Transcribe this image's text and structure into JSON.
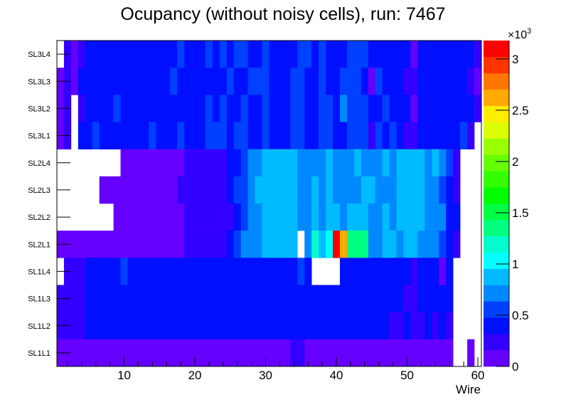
{
  "chart_data": {
    "type": "heatmap",
    "title": "Ocupancy (without noisy cells), run: 7467",
    "xlabel": "Wire",
    "ylabel": "",
    "xlim": [
      0.5,
      60.5
    ],
    "x_ticks": [
      10,
      20,
      30,
      40,
      50,
      60
    ],
    "y_categories_top_to_bottom": [
      "SL3L4",
      "SL3L3",
      "SL3L2",
      "SL3L1",
      "SL2L4",
      "SL2L3",
      "SL2L2",
      "SL2L1",
      "SL1L4",
      "SL1L3",
      "SL1L2",
      "SL1L1"
    ],
    "zlim": [
      0,
      3180
    ],
    "z_exponent_label": "×10",
    "z_exponent_power": "3",
    "z_ticks": [
      {
        "value": 0,
        "label": "0"
      },
      {
        "value": 500,
        "label": "0.5"
      },
      {
        "value": 1000,
        "label": "1"
      },
      {
        "value": 1500,
        "label": "1.5"
      },
      {
        "value": 2000,
        "label": "2"
      },
      {
        "value": 2500,
        "label": "2.5"
      },
      {
        "value": 3000,
        "label": "3"
      }
    ],
    "palette": [
      "#6600ff",
      "#3300ff",
      "#0010ff",
      "#0040ff",
      "#0088ff",
      "#00bbff",
      "#00ffff",
      "#00ffcc",
      "#00ff80",
      "#00ff44",
      "#00ff00",
      "#33ff00",
      "#66ff00",
      "#99ff00",
      "#ddff00",
      "#ffee00",
      "#ffaa00",
      "#ff7700",
      "#ff3300",
      "#ff0000"
    ],
    "rows_note": "each row: list of [first_wire, last_wire, counts]; wires not listed are empty",
    "rows": {
      "SL3L4": [
        [
          2,
          2,
          240
        ],
        [
          3,
          3,
          80
        ],
        [
          4,
          4,
          240
        ],
        [
          5,
          17,
          400
        ],
        [
          18,
          18,
          560
        ],
        [
          19,
          21,
          400
        ],
        [
          22,
          22,
          560
        ],
        [
          23,
          23,
          400
        ],
        [
          24,
          24,
          560
        ],
        [
          25,
          25,
          400
        ],
        [
          26,
          27,
          560
        ],
        [
          28,
          29,
          400
        ],
        [
          30,
          30,
          560
        ],
        [
          31,
          34,
          400
        ],
        [
          35,
          36,
          560
        ],
        [
          37,
          37,
          400
        ],
        [
          38,
          38,
          560
        ],
        [
          39,
          41,
          400
        ],
        [
          42,
          44,
          560
        ],
        [
          45,
          50,
          400
        ],
        [
          51,
          51,
          80
        ],
        [
          52,
          59,
          400
        ],
        [
          60,
          60,
          240
        ]
      ],
      "SL3L3": [
        [
          1,
          1,
          80
        ],
        [
          2,
          2,
          240
        ],
        [
          3,
          3,
          80
        ],
        [
          4,
          16,
          400
        ],
        [
          17,
          17,
          560
        ],
        [
          18,
          24,
          400
        ],
        [
          25,
          25,
          560
        ],
        [
          26,
          27,
          400
        ],
        [
          28,
          30,
          560
        ],
        [
          31,
          33,
          400
        ],
        [
          34,
          35,
          560
        ],
        [
          36,
          37,
          400
        ],
        [
          38,
          38,
          560
        ],
        [
          39,
          40,
          400
        ],
        [
          41,
          43,
          560
        ],
        [
          44,
          44,
          400
        ],
        [
          45,
          45,
          80
        ],
        [
          46,
          46,
          560
        ],
        [
          47,
          49,
          400
        ],
        [
          50,
          51,
          240
        ],
        [
          52,
          58,
          400
        ],
        [
          59,
          59,
          240
        ],
        [
          60,
          60,
          80
        ]
      ],
      "SL3L2": [
        [
          1,
          1,
          80
        ],
        [
          2,
          2,
          240
        ],
        [
          4,
          4,
          240
        ],
        [
          5,
          8,
          400
        ],
        [
          9,
          9,
          560
        ],
        [
          10,
          21,
          400
        ],
        [
          22,
          22,
          560
        ],
        [
          23,
          23,
          400
        ],
        [
          24,
          24,
          560
        ],
        [
          25,
          26,
          400
        ],
        [
          27,
          27,
          560
        ],
        [
          28,
          29,
          400
        ],
        [
          30,
          30,
          560
        ],
        [
          31,
          33,
          400
        ],
        [
          34,
          35,
          560
        ],
        [
          36,
          37,
          400
        ],
        [
          38,
          39,
          560
        ],
        [
          40,
          40,
          400
        ],
        [
          41,
          41,
          715
        ],
        [
          42,
          44,
          560
        ],
        [
          45,
          46,
          400
        ],
        [
          47,
          47,
          560
        ],
        [
          48,
          50,
          400
        ],
        [
          51,
          51,
          80
        ],
        [
          52,
          59,
          400
        ],
        [
          60,
          60,
          240
        ]
      ],
      "SL3L1": [
        [
          1,
          1,
          80
        ],
        [
          2,
          2,
          240
        ],
        [
          4,
          5,
          400
        ],
        [
          6,
          6,
          560
        ],
        [
          7,
          13,
          400
        ],
        [
          14,
          14,
          560
        ],
        [
          15,
          17,
          400
        ],
        [
          18,
          18,
          560
        ],
        [
          19,
          21,
          400
        ],
        [
          22,
          24,
          560
        ],
        [
          25,
          25,
          400
        ],
        [
          26,
          27,
          560
        ],
        [
          28,
          29,
          400
        ],
        [
          30,
          30,
          560
        ],
        [
          31,
          33,
          400
        ],
        [
          34,
          35,
          560
        ],
        [
          36,
          37,
          400
        ],
        [
          38,
          39,
          560
        ],
        [
          40,
          41,
          400
        ],
        [
          42,
          44,
          560
        ],
        [
          45,
          45,
          240
        ],
        [
          46,
          46,
          560
        ],
        [
          47,
          47,
          400
        ],
        [
          48,
          48,
          560
        ],
        [
          49,
          49,
          400
        ],
        [
          50,
          51,
          240
        ],
        [
          52,
          57,
          400
        ],
        [
          58,
          58,
          560
        ],
        [
          59,
          59,
          240
        ]
      ],
      "SL2L4": [
        [
          10,
          18,
          80
        ],
        [
          19,
          24,
          240
        ],
        [
          25,
          26,
          400
        ],
        [
          27,
          27,
          560
        ],
        [
          28,
          29,
          715
        ],
        [
          30,
          34,
          875
        ],
        [
          35,
          38,
          715
        ],
        [
          39,
          39,
          875
        ],
        [
          40,
          42,
          715
        ],
        [
          43,
          43,
          875
        ],
        [
          44,
          46,
          715
        ],
        [
          47,
          47,
          875
        ],
        [
          48,
          48,
          715
        ],
        [
          49,
          52,
          875
        ],
        [
          53,
          53,
          715
        ],
        [
          54,
          54,
          875
        ],
        [
          55,
          55,
          715
        ],
        [
          56,
          56,
          560
        ],
        [
          57,
          57,
          240
        ]
      ],
      "SL2L3": [
        [
          7,
          17,
          80
        ],
        [
          18,
          24,
          240
        ],
        [
          25,
          25,
          400
        ],
        [
          26,
          27,
          560
        ],
        [
          28,
          28,
          715
        ],
        [
          29,
          34,
          875
        ],
        [
          35,
          36,
          715
        ],
        [
          37,
          37,
          875
        ],
        [
          38,
          38,
          715
        ],
        [
          39,
          39,
          875
        ],
        [
          40,
          43,
          715
        ],
        [
          44,
          45,
          875
        ],
        [
          46,
          48,
          715
        ],
        [
          49,
          52,
          875
        ],
        [
          53,
          54,
          715
        ],
        [
          55,
          55,
          560
        ],
        [
          56,
          56,
          400
        ],
        [
          57,
          57,
          240
        ]
      ],
      "SL2L2": [
        [
          9,
          18,
          80
        ],
        [
          19,
          25,
          240
        ],
        [
          26,
          26,
          400
        ],
        [
          27,
          27,
          560
        ],
        [
          28,
          29,
          715
        ],
        [
          30,
          34,
          875
        ],
        [
          35,
          36,
          715
        ],
        [
          37,
          37,
          875
        ],
        [
          38,
          38,
          715
        ],
        [
          39,
          40,
          875
        ],
        [
          41,
          41,
          715
        ],
        [
          42,
          44,
          875
        ],
        [
          45,
          46,
          715
        ],
        [
          47,
          47,
          875
        ],
        [
          48,
          48,
          715
        ],
        [
          49,
          52,
          875
        ],
        [
          53,
          55,
          715
        ],
        [
          56,
          57,
          400
        ]
      ],
      "SL2L1": [
        [
          1,
          18,
          80
        ],
        [
          19,
          24,
          240
        ],
        [
          25,
          25,
          400
        ],
        [
          26,
          26,
          560
        ],
        [
          27,
          29,
          715
        ],
        [
          30,
          34,
          875
        ],
        [
          36,
          36,
          715
        ],
        [
          37,
          37,
          1190
        ],
        [
          38,
          38,
          875
        ],
        [
          39,
          39,
          1030
        ],
        [
          40,
          40,
          3100
        ],
        [
          41,
          41,
          2620
        ],
        [
          42,
          44,
          1350
        ],
        [
          45,
          46,
          715
        ],
        [
          47,
          48,
          875
        ],
        [
          49,
          49,
          715
        ],
        [
          50,
          51,
          875
        ],
        [
          52,
          54,
          715
        ],
        [
          55,
          55,
          560
        ],
        [
          56,
          56,
          400
        ],
        [
          57,
          57,
          240
        ]
      ],
      "SL1L4": [
        [
          2,
          4,
          240
        ],
        [
          5,
          9,
          400
        ],
        [
          10,
          10,
          560
        ],
        [
          11,
          34,
          400
        ],
        [
          35,
          35,
          560
        ],
        [
          36,
          36,
          400
        ],
        [
          41,
          50,
          400
        ],
        [
          51,
          51,
          240
        ],
        [
          52,
          54,
          400
        ],
        [
          55,
          55,
          80
        ],
        [
          56,
          56,
          400
        ]
      ],
      "SL1L3": [
        [
          1,
          4,
          240
        ],
        [
          5,
          49,
          400
        ],
        [
          50,
          51,
          240
        ],
        [
          52,
          56,
          400
        ]
      ],
      "SL1L2": [
        [
          1,
          4,
          240
        ],
        [
          5,
          47,
          400
        ],
        [
          48,
          49,
          240
        ],
        [
          50,
          50,
          400
        ],
        [
          51,
          52,
          240
        ],
        [
          53,
          53,
          400
        ],
        [
          54,
          54,
          240
        ],
        [
          55,
          55,
          400
        ],
        [
          56,
          56,
          240
        ]
      ],
      "SL1L1": [
        [
          1,
          33,
          80
        ],
        [
          34,
          35,
          240
        ],
        [
          36,
          56,
          80
        ],
        [
          59,
          59,
          80
        ]
      ]
    }
  }
}
